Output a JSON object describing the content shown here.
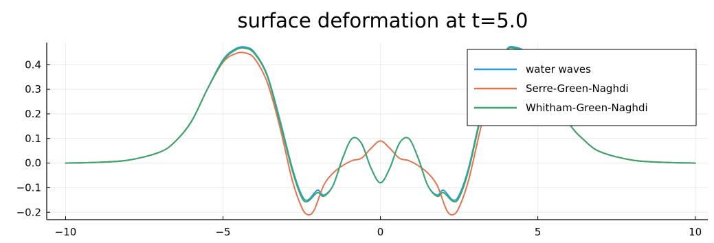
{
  "chart_data": {
    "type": "line",
    "title": "surface deformation at t=5.0",
    "xlabel": "",
    "ylabel": "",
    "xlim": [
      -10.6,
      10.4
    ],
    "ylim": [
      -0.23,
      0.49
    ],
    "xticks": [
      -10,
      -5,
      0,
      5,
      10
    ],
    "xtick_labels": [
      "−10",
      "−5",
      "0",
      "5",
      "10"
    ],
    "yticks": [
      -0.2,
      -0.1,
      0.0,
      0.1,
      0.2,
      0.3,
      0.4
    ],
    "ytick_labels": [
      "−0.2",
      "−0.1",
      "0.0",
      "0.1",
      "0.2",
      "0.3",
      "0.4"
    ],
    "grid": true,
    "legend_position": "top-right",
    "series": [
      {
        "name": "water waves",
        "color": "#2d9cdb",
        "x": [
          -10,
          -9,
          -8,
          -7,
          -6.5,
          -6,
          -5.5,
          -5,
          -4.6,
          -4.3,
          -4.0,
          -3.6,
          -3.2,
          -2.8,
          -2.5,
          -2.3,
          -2.0,
          -1.8,
          -1.5,
          -1.2,
          -0.9,
          -0.6,
          -0.3,
          0,
          0.3,
          0.6,
          0.9,
          1.2,
          1.5,
          1.8,
          2.0,
          2.3,
          2.5,
          2.8,
          3.2,
          3.6,
          4.0,
          4.2,
          4.6,
          5.0,
          5.5,
          6.0,
          6.5,
          7.0,
          8.0,
          9.0,
          10.0
        ],
        "values": [
          0.0,
          0.003,
          0.012,
          0.045,
          0.09,
          0.17,
          0.3,
          0.42,
          0.465,
          0.472,
          0.45,
          0.36,
          0.18,
          -0.02,
          -0.13,
          -0.15,
          -0.11,
          -0.13,
          -0.09,
          0.02,
          0.1,
          0.08,
          -0.02,
          -0.08,
          -0.02,
          0.08,
          0.1,
          0.02,
          -0.09,
          -0.13,
          -0.11,
          -0.15,
          -0.13,
          -0.02,
          0.2,
          0.38,
          0.46,
          0.473,
          0.455,
          0.4,
          0.29,
          0.16,
          0.09,
          0.045,
          0.012,
          0.003,
          0.0
        ]
      },
      {
        "name": "Serre-Green-Naghdi",
        "color": "#e5724f",
        "x": [
          -10,
          -9,
          -8,
          -7,
          -6.5,
          -6,
          -5.5,
          -5,
          -4.6,
          -4.3,
          -4.0,
          -3.6,
          -3.2,
          -2.8,
          -2.5,
          -2.3,
          -2.1,
          -1.8,
          -1.5,
          -1.2,
          -0.9,
          -0.6,
          -0.3,
          0,
          0.3,
          0.6,
          0.9,
          1.2,
          1.5,
          1.8,
          2.1,
          2.3,
          2.5,
          2.8,
          3.2,
          3.6,
          4.0,
          4.2,
          4.6,
          5.0,
          5.5,
          6.0,
          6.5,
          7.0,
          8.0,
          9.0,
          10.0
        ],
        "values": [
          0.0,
          0.003,
          0.012,
          0.045,
          0.09,
          0.17,
          0.3,
          0.41,
          0.445,
          0.448,
          0.425,
          0.33,
          0.15,
          -0.07,
          -0.18,
          -0.21,
          -0.19,
          -0.09,
          -0.04,
          -0.01,
          0.01,
          0.02,
          0.06,
          0.09,
          0.06,
          0.02,
          0.01,
          -0.01,
          -0.04,
          -0.09,
          -0.19,
          -0.21,
          -0.18,
          -0.07,
          0.15,
          0.34,
          0.43,
          0.448,
          0.44,
          0.4,
          0.29,
          0.16,
          0.09,
          0.045,
          0.012,
          0.003,
          0.0
        ]
      },
      {
        "name": "Whitham-Green-Naghdi",
        "color": "#3aa66a",
        "x": [
          -10,
          -9,
          -8,
          -7,
          -6.5,
          -6,
          -5.5,
          -5,
          -4.6,
          -4.3,
          -4.0,
          -3.6,
          -3.2,
          -2.8,
          -2.5,
          -2.3,
          -2.0,
          -1.8,
          -1.5,
          -1.2,
          -0.9,
          -0.6,
          -0.3,
          0,
          0.3,
          0.6,
          0.9,
          1.2,
          1.5,
          1.8,
          2.0,
          2.3,
          2.5,
          2.8,
          3.2,
          3.6,
          4.0,
          4.2,
          4.6,
          5.0,
          5.5,
          6.0,
          6.5,
          7.0,
          8.0,
          9.0,
          10.0
        ],
        "values": [
          0.0,
          0.003,
          0.012,
          0.045,
          0.09,
          0.17,
          0.3,
          0.415,
          0.46,
          0.467,
          0.445,
          0.355,
          0.17,
          -0.03,
          -0.14,
          -0.155,
          -0.12,
          -0.135,
          -0.09,
          0.02,
          0.1,
          0.08,
          -0.02,
          -0.08,
          -0.02,
          0.08,
          0.1,
          0.02,
          -0.09,
          -0.135,
          -0.12,
          -0.155,
          -0.14,
          -0.03,
          0.19,
          0.37,
          0.455,
          0.468,
          0.45,
          0.4,
          0.29,
          0.16,
          0.09,
          0.045,
          0.012,
          0.003,
          0.0
        ]
      }
    ]
  }
}
